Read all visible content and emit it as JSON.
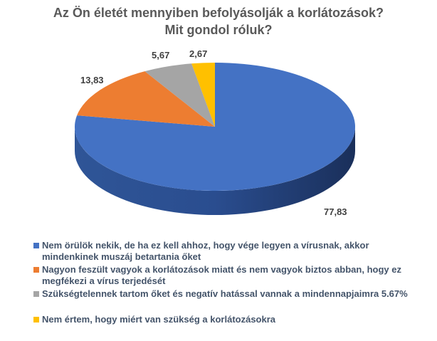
{
  "chart_data": {
    "type": "pie",
    "style": "3d",
    "title": [
      "Az Ön életét mennyiben befolyásolják a korlátozások?",
      "Mit gondol róluk?"
    ],
    "legend_position": "bottom",
    "slices": [
      {
        "name": "Nem örülök nekik, de ha ez kell ahhoz, hogy vége legyen a vírusnak, akkor mindenkinek muszáj betartania őket",
        "value": 77.83,
        "label": "77,83",
        "color": "#4472c4"
      },
      {
        "name": "Nagyon feszült vagyok a korlátozások miatt és nem vagyok biztos abban, hogy ez megfékezi a vírus terjedését",
        "value": 13.83,
        "label": "13,83",
        "color": "#ed7d31"
      },
      {
        "name": "Szükségtelennek tartom őket és negatív hatással vannak a mindennapjaimra  5.67%",
        "value": 5.67,
        "label": "5,67",
        "color": "#a5a5a5"
      },
      {
        "name": "Nem értem, hogy miért van szükség a korlátozásokra",
        "value": 2.67,
        "label": "2,67",
        "color": "#ffc000"
      }
    ]
  }
}
